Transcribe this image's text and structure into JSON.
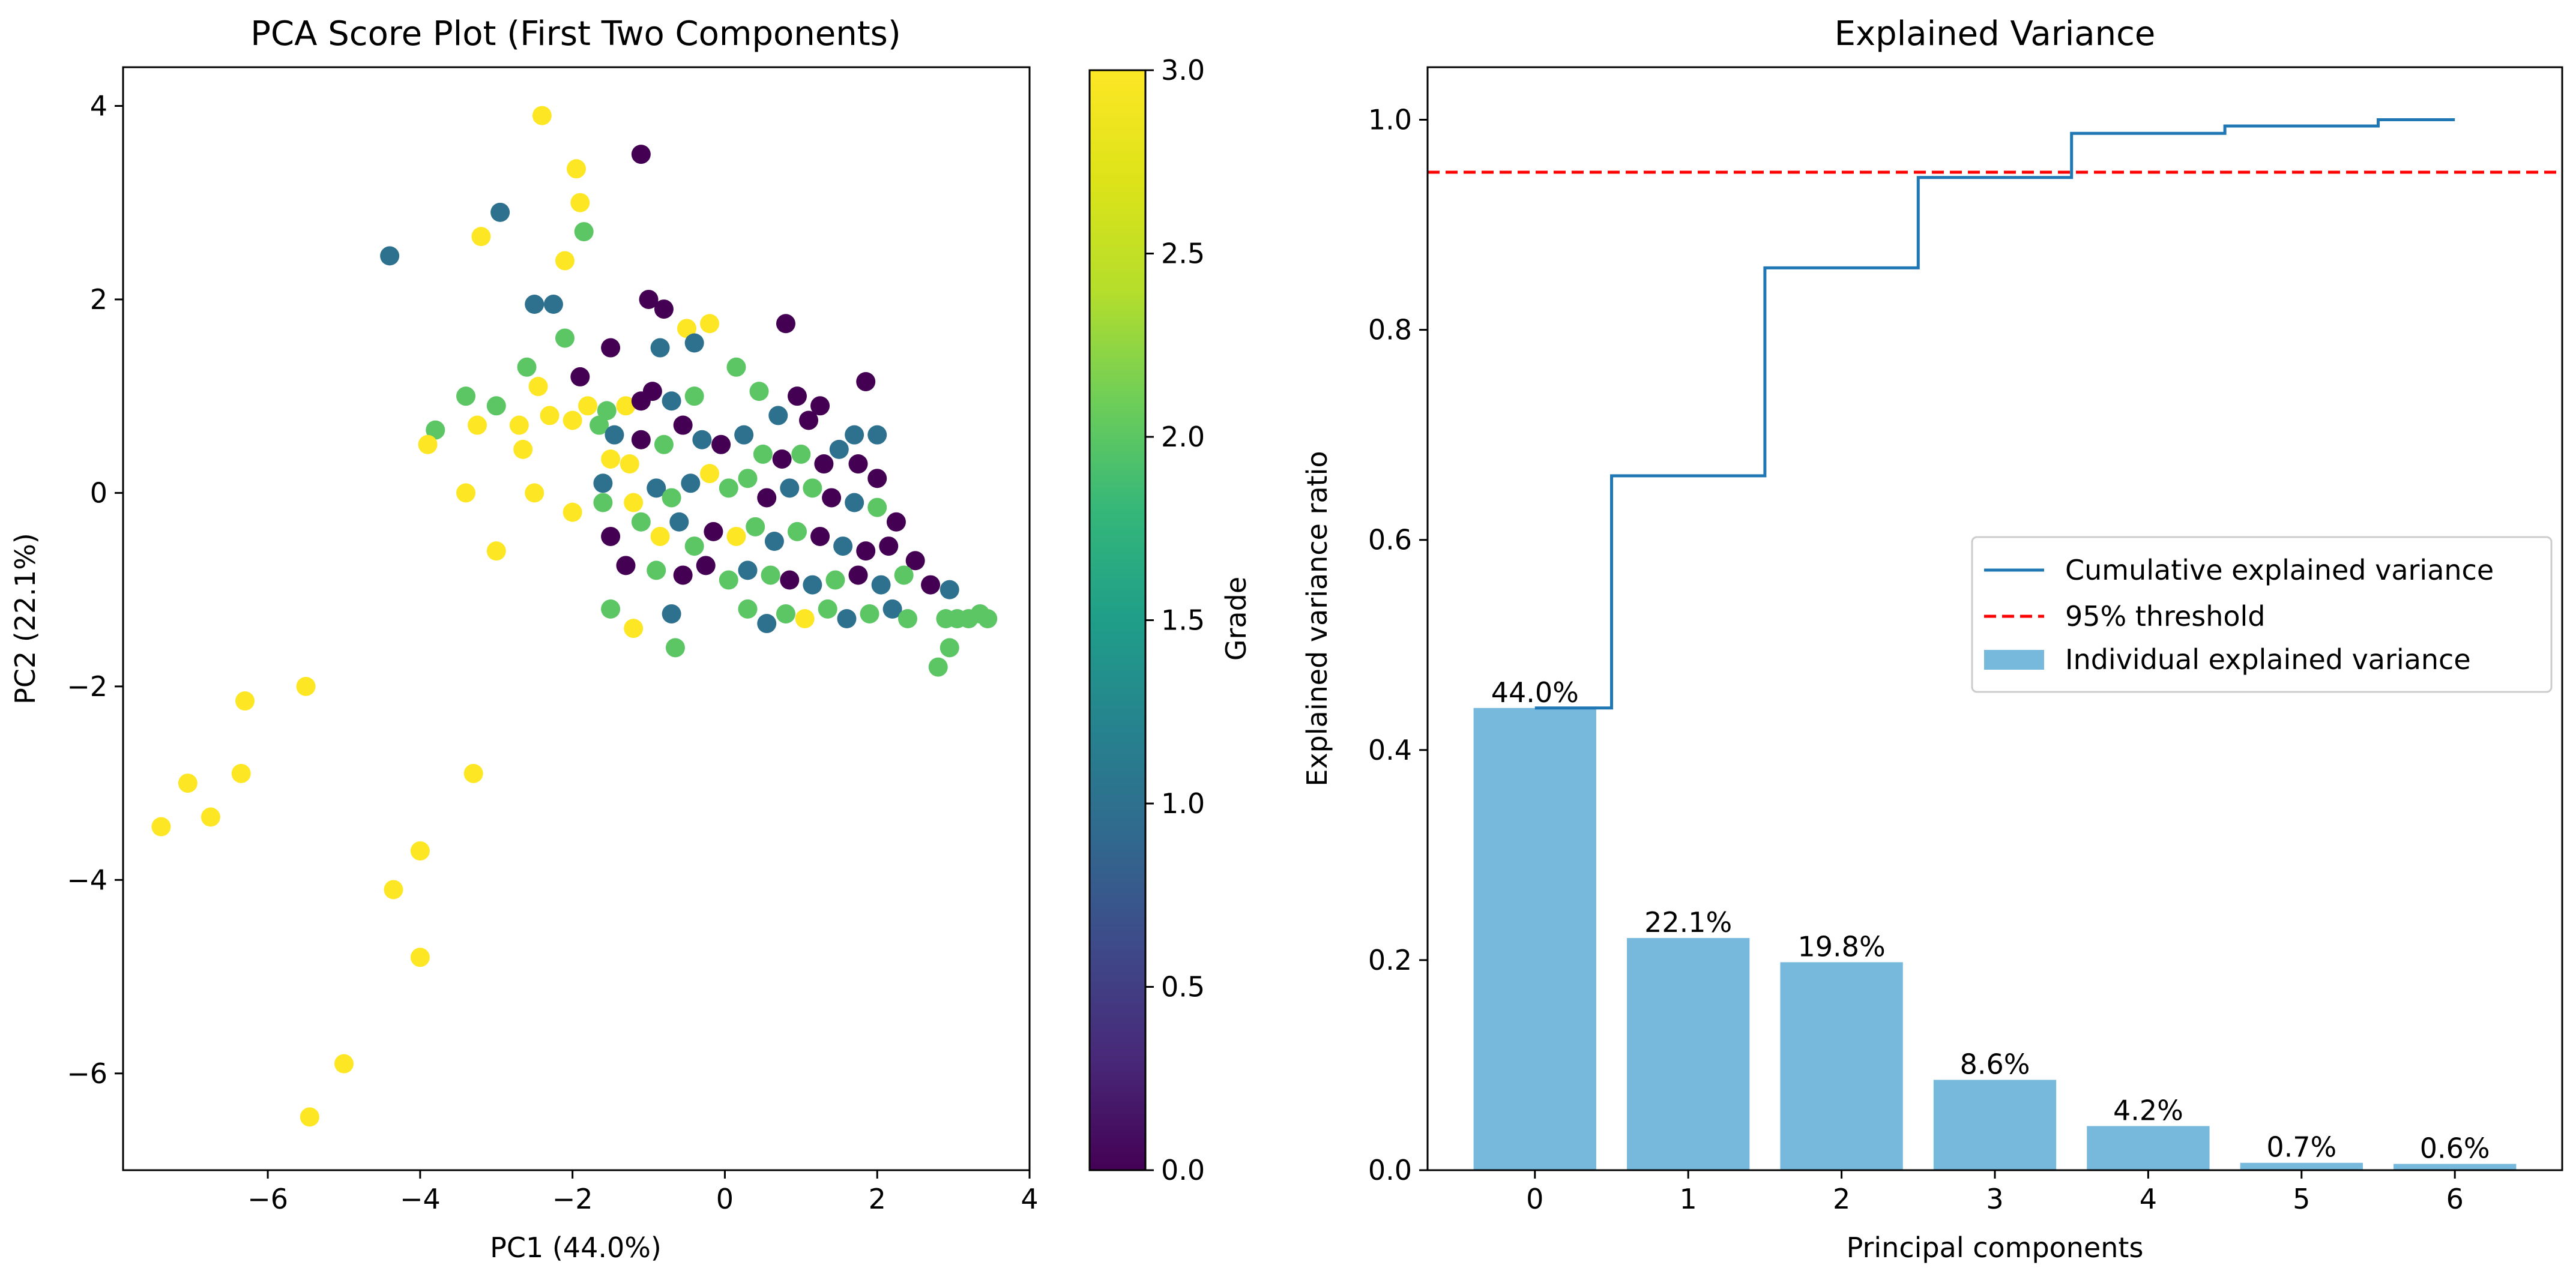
{
  "colors": {
    "bar": "#76b9dd",
    "cumulative_line": "#1f77b4",
    "threshold_line": "#ff0000",
    "axis": "#000000",
    "colormap": "viridis"
  },
  "chart_data": [
    {
      "type": "scatter",
      "title": "PCA Score Plot (First Two Components)",
      "xlabel": "PC1 (44.0%)",
      "ylabel": "PC2 (22.1%)",
      "xlim": [
        -7.9,
        4.0
      ],
      "ylim": [
        -7.0,
        4.4
      ],
      "xticks": [
        -6,
        -4,
        -2,
        0,
        2,
        4
      ],
      "yticks": [
        -6,
        -4,
        -2,
        0,
        2,
        4
      ],
      "grid": false,
      "colorbar": {
        "label": "Grade",
        "range": [
          0.0,
          3.0
        ],
        "colormap": "viridis",
        "ticks": [
          "0.0",
          "0.5",
          "1.0",
          "1.5",
          "2.0",
          "2.5",
          "3.0"
        ]
      },
      "points": [
        [
          -2.4,
          3.9,
          3
        ],
        [
          -1.95,
          3.35,
          3
        ],
        [
          -1.9,
          3.0,
          3
        ],
        [
          -2.1,
          2.4,
          3
        ],
        [
          -3.2,
          2.65,
          3
        ],
        [
          -1.1,
          3.5,
          0
        ],
        [
          -2.95,
          2.9,
          1
        ],
        [
          -1.85,
          2.7,
          2
        ],
        [
          -4.4,
          2.45,
          1
        ],
        [
          -2.25,
          1.95,
          1
        ],
        [
          -1.5,
          1.5,
          0
        ],
        [
          -1.0,
          2.0,
          0
        ],
        [
          -0.8,
          1.9,
          0
        ],
        [
          -0.5,
          1.7,
          3
        ],
        [
          -0.2,
          1.75,
          3
        ],
        [
          0.8,
          1.75,
          0
        ],
        [
          -0.4,
          1.55,
          1
        ],
        [
          -0.85,
          1.5,
          1
        ],
        [
          -2.1,
          1.6,
          2
        ],
        [
          -2.5,
          1.95,
          1
        ],
        [
          -2.6,
          1.3,
          2
        ],
        [
          -2.45,
          1.1,
          3
        ],
        [
          -3.4,
          1.0,
          2
        ],
        [
          -1.9,
          1.2,
          0
        ],
        [
          -2.3,
          0.8,
          3
        ],
        [
          -2.0,
          0.75,
          3
        ],
        [
          -1.8,
          0.9,
          3
        ],
        [
          -1.55,
          0.85,
          2
        ],
        [
          -1.3,
          0.9,
          3
        ],
        [
          -1.1,
          0.95,
          0
        ],
        [
          -0.95,
          1.05,
          0
        ],
        [
          -0.7,
          0.95,
          1
        ],
        [
          -0.4,
          1.0,
          2
        ],
        [
          0.15,
          1.3,
          2
        ],
        [
          0.45,
          1.05,
          2
        ],
        [
          0.95,
          1.0,
          0
        ],
        [
          1.25,
          0.9,
          0
        ],
        [
          1.85,
          1.15,
          0
        ],
        [
          2.0,
          0.6,
          1
        ],
        [
          1.7,
          0.6,
          1
        ],
        [
          1.1,
          0.75,
          0
        ],
        [
          0.7,
          0.8,
          1
        ],
        [
          -3.8,
          0.65,
          2
        ],
        [
          -3.9,
          0.5,
          3
        ],
        [
          -3.25,
          0.7,
          3
        ],
        [
          -3.0,
          0.9,
          2
        ],
        [
          -2.7,
          0.7,
          3
        ],
        [
          -2.65,
          0.45,
          3
        ],
        [
          -1.65,
          0.7,
          2
        ],
        [
          -1.45,
          0.6,
          1
        ],
        [
          -1.25,
          0.3,
          3
        ],
        [
          -1.5,
          0.35,
          3
        ],
        [
          -1.1,
          0.55,
          0
        ],
        [
          -0.8,
          0.5,
          2
        ],
        [
          -0.55,
          0.7,
          0
        ],
        [
          -0.3,
          0.55,
          1
        ],
        [
          -0.05,
          0.5,
          0
        ],
        [
          0.25,
          0.6,
          1
        ],
        [
          0.5,
          0.4,
          2
        ],
        [
          0.75,
          0.35,
          0
        ],
        [
          1.0,
          0.4,
          2
        ],
        [
          1.3,
          0.3,
          0
        ],
        [
          1.5,
          0.45,
          1
        ],
        [
          1.75,
          0.3,
          0
        ],
        [
          2.0,
          0.15,
          0
        ],
        [
          -3.4,
          0.0,
          3
        ],
        [
          -2.5,
          0.0,
          3
        ],
        [
          -2.0,
          -0.2,
          3
        ],
        [
          -1.6,
          -0.1,
          2
        ],
        [
          -1.6,
          0.1,
          1
        ],
        [
          -1.2,
          -0.1,
          3
        ],
        [
          -0.9,
          0.05,
          1
        ],
        [
          -0.7,
          -0.05,
          2
        ],
        [
          -0.45,
          0.1,
          1
        ],
        [
          -0.2,
          0.2,
          3
        ],
        [
          0.05,
          0.05,
          2
        ],
        [
          0.3,
          0.15,
          2
        ],
        [
          0.55,
          -0.05,
          0
        ],
        [
          0.85,
          0.05,
          1
        ],
        [
          1.15,
          0.05,
          2
        ],
        [
          1.4,
          -0.05,
          0
        ],
        [
          1.7,
          -0.1,
          1
        ],
        [
          2.0,
          -0.15,
          2
        ],
        [
          2.25,
          -0.3,
          0
        ],
        [
          -3.0,
          -0.6,
          3
        ],
        [
          -1.5,
          -0.45,
          0
        ],
        [
          -1.1,
          -0.3,
          2
        ],
        [
          -0.85,
          -0.45,
          3
        ],
        [
          -0.6,
          -0.3,
          1
        ],
        [
          -0.4,
          -0.55,
          2
        ],
        [
          -0.15,
          -0.4,
          0
        ],
        [
          0.15,
          -0.45,
          3
        ],
        [
          0.4,
          -0.35,
          2
        ],
        [
          0.65,
          -0.5,
          1
        ],
        [
          0.95,
          -0.4,
          2
        ],
        [
          1.25,
          -0.45,
          0
        ],
        [
          1.55,
          -0.55,
          1
        ],
        [
          1.85,
          -0.6,
          0
        ],
        [
          2.15,
          -0.55,
          0
        ],
        [
          2.5,
          -0.7,
          0
        ],
        [
          -1.3,
          -0.75,
          0
        ],
        [
          -0.9,
          -0.8,
          2
        ],
        [
          -0.55,
          -0.85,
          0
        ],
        [
          -0.25,
          -0.75,
          0
        ],
        [
          0.05,
          -0.9,
          2
        ],
        [
          0.3,
          -0.8,
          1
        ],
        [
          0.6,
          -0.85,
          2
        ],
        [
          0.85,
          -0.9,
          0
        ],
        [
          1.15,
          -0.95,
          1
        ],
        [
          1.45,
          -0.9,
          2
        ],
        [
          1.75,
          -0.85,
          0
        ],
        [
          2.05,
          -0.95,
          1
        ],
        [
          2.35,
          -0.85,
          2
        ],
        [
          2.7,
          -0.95,
          0
        ],
        [
          2.95,
          -1.0,
          1
        ],
        [
          -1.5,
          -1.2,
          2
        ],
        [
          -1.2,
          -1.4,
          3
        ],
        [
          -0.7,
          -1.25,
          1
        ],
        [
          -0.65,
          -1.6,
          2
        ],
        [
          0.3,
          -1.2,
          2
        ],
        [
          0.55,
          -1.35,
          1
        ],
        [
          0.8,
          -1.25,
          2
        ],
        [
          1.05,
          -1.3,
          3
        ],
        [
          1.35,
          -1.2,
          2
        ],
        [
          1.6,
          -1.3,
          1
        ],
        [
          1.9,
          -1.25,
          2
        ],
        [
          2.2,
          -1.2,
          1
        ],
        [
          2.4,
          -1.3,
          2
        ],
        [
          2.9,
          -1.3,
          2
        ],
        [
          3.05,
          -1.3,
          2
        ],
        [
          3.2,
          -1.3,
          2
        ],
        [
          3.35,
          -1.25,
          2
        ],
        [
          3.45,
          -1.3,
          2
        ],
        [
          2.8,
          -1.8,
          2
        ],
        [
          2.95,
          -1.6,
          2
        ],
        [
          -5.5,
          -2.0,
          3
        ],
        [
          -6.3,
          -2.15,
          3
        ],
        [
          -6.35,
          -2.9,
          3
        ],
        [
          -6.75,
          -3.35,
          3
        ],
        [
          -7.05,
          -3.0,
          3
        ],
        [
          -7.4,
          -3.45,
          3
        ],
        [
          -3.3,
          -2.9,
          3
        ],
        [
          -4.0,
          -3.7,
          3
        ],
        [
          -4.35,
          -4.1,
          3
        ],
        [
          -4.0,
          -4.8,
          3
        ],
        [
          -5.0,
          -5.9,
          3
        ],
        [
          -5.45,
          -6.45,
          3
        ]
      ]
    },
    {
      "type": "bar",
      "title": "Explained Variance",
      "xlabel": "Principal components",
      "ylabel": "Explained variance ratio",
      "categories": [
        "0",
        "1",
        "2",
        "3",
        "4",
        "5",
        "6"
      ],
      "xlim": [
        -0.7,
        6.7
      ],
      "ylim": [
        0.0,
        1.05
      ],
      "yticks": [
        "0.0",
        "0.2",
        "0.4",
        "0.6",
        "0.8",
        "1.0"
      ],
      "grid": false,
      "legend_position": "center-right",
      "series": [
        {
          "name": "Individual explained variance",
          "kind": "bar",
          "values": [
            0.44,
            0.221,
            0.198,
            0.086,
            0.042,
            0.007,
            0.006
          ],
          "labels": [
            "44.0%",
            "22.1%",
            "19.8%",
            "8.6%",
            "4.2%",
            "0.7%",
            "0.6%"
          ]
        },
        {
          "name": "Cumulative explained variance",
          "kind": "step",
          "values": [
            0.44,
            0.661,
            0.859,
            0.945,
            0.987,
            0.994,
            1.0
          ]
        },
        {
          "name": "95% threshold",
          "kind": "hline",
          "value": 0.95
        }
      ]
    }
  ]
}
